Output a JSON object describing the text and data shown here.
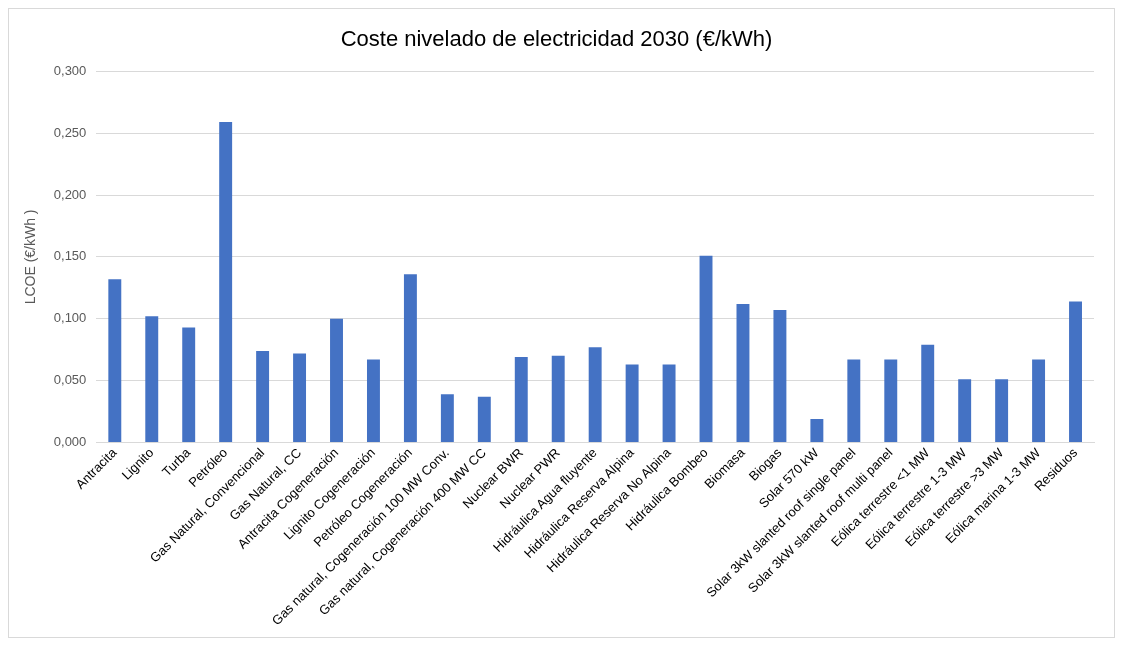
{
  "chart_data": {
    "type": "bar",
    "title": "Coste nivelado de electricidad 2030 (€/kWh)",
    "ylabel": "LCOE (€/kWh )",
    "categories": [
      "Antracita",
      "Lignito",
      "Turba",
      "Petróleo",
      "Gas Natural, Convencional",
      "Gas Natural, CC",
      "Antracita Cogeneración",
      "Lignito Cogeneración",
      "Petróleo Cogeneración",
      "Gas natural, Cogeneración 100 MW Conv.",
      "Gas natural, Cogeneración 400 MW CC",
      "Nuclear BWR",
      "Nuclear PWR",
      "Hidráulica Agua fluyente",
      "Hidráulica Reserva Alpina",
      "Hidráulica Reserva No Alpina",
      "Hidráulica Bombeo",
      "Biomasa",
      "Biogas",
      "Solar 570 kW",
      "Solar 3kW slanted roof single panel",
      "Solar 3kW slanted roof multi panel",
      "Eólica terrestre <1 MW",
      "Eólica terrestre 1-3 MW",
      "Eólica terrestre >3 MW",
      "Eólica marina 1-3 MW",
      "Residuos"
    ],
    "values": [
      0.132,
      0.102,
      0.093,
      0.259,
      0.074,
      0.072,
      0.1,
      0.067,
      0.136,
      0.039,
      0.037,
      0.069,
      0.07,
      0.077,
      0.063,
      0.063,
      0.151,
      0.112,
      0.107,
      0.019,
      0.067,
      0.067,
      0.079,
      0.051,
      0.051,
      0.067,
      0.114
    ],
    "color": "#4472c4",
    "ylim": [
      0,
      0.3
    ],
    "yticks": [
      {
        "value": 0,
        "label": "0,000"
      },
      {
        "value": 0.05,
        "label": "0,050"
      },
      {
        "value": 0.1,
        "label": "0,100"
      },
      {
        "value": 0.15,
        "label": "0,150"
      },
      {
        "value": 0.2,
        "label": "0,200"
      },
      {
        "value": 0.25,
        "label": "0,250"
      },
      {
        "value": 0.3,
        "label": "0,300"
      }
    ],
    "grid": "y",
    "legend": false
  }
}
